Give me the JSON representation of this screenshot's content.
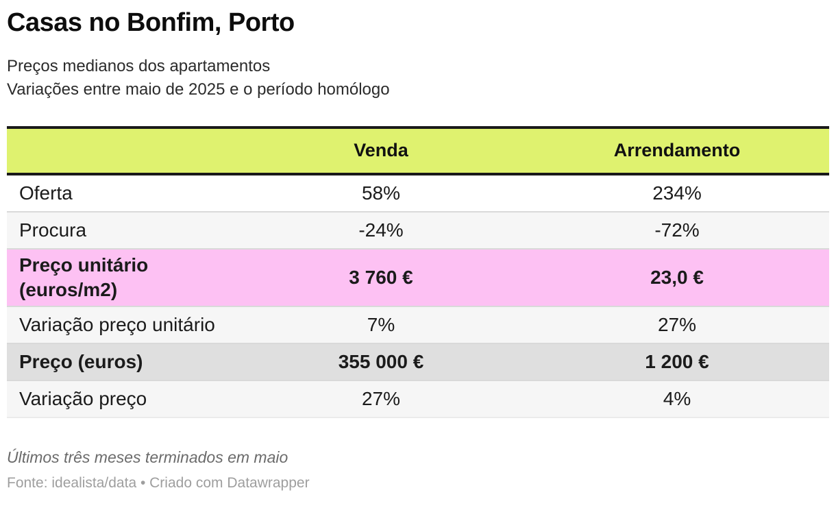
{
  "chart_data": {
    "type": "table",
    "title": "Casas no Bonfim, Porto",
    "subtitle": [
      "Preços medianos dos apartamentos",
      "Variações entre maio de 2025 e o período homólogo"
    ],
    "columns": [
      "",
      "Venda",
      "Arrendamento"
    ],
    "rows": [
      {
        "label": "Oferta",
        "venda": "58%",
        "arrendamento": "234%",
        "highlight": "none"
      },
      {
        "label": "Procura",
        "venda": "-24%",
        "arrendamento": "-72%",
        "highlight": "none"
      },
      {
        "label": "Preço unitário\n(euros/m2)",
        "venda": "3 760 €",
        "arrendamento": "23,0 €",
        "highlight": "pink"
      },
      {
        "label": "Variação preço unitário",
        "venda": "7%",
        "arrendamento": "27%",
        "highlight": "none"
      },
      {
        "label": "Preço (euros)",
        "venda": "355 000 €",
        "arrendamento": "1 200 €",
        "highlight": "gray"
      },
      {
        "label": "Variação preço",
        "venda": "27%",
        "arrendamento": "4%",
        "highlight": "none"
      }
    ],
    "footnote": "Últimos três meses terminados em maio",
    "source": "Fonte: idealista/data • Criado com Datawrapper",
    "layout_hints": {
      "zebra_striping": true,
      "value_alignment": "center"
    }
  },
  "colors": {
    "header_background": "#dff26f",
    "highlight_pink": "#fdc1f3",
    "highlight_gray": "#dfdfdf",
    "zebra_gray": "#f6f6f6",
    "rule_black": "#1a1a1a",
    "footnote_gray": "#6b6b6b",
    "source_gray": "#9e9e9e"
  }
}
